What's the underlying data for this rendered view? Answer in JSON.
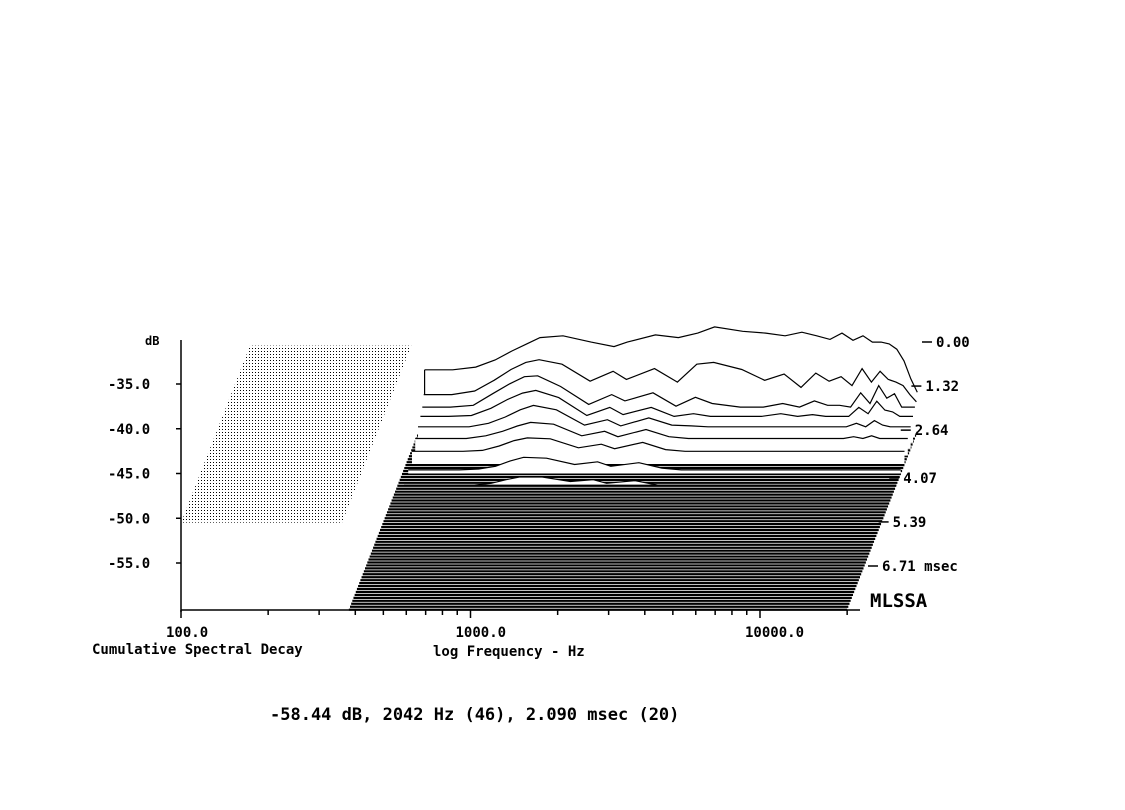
{
  "chart_data": {
    "type": "waterfall",
    "title": "Cumulative Spectral Decay",
    "xlabel": "log Frequency - Hz",
    "ylabel": "dB",
    "x_scale": "log",
    "x_ticks": [
      {
        "value": 100,
        "label": "100.0"
      },
      {
        "value": 1000,
        "label": "1000.0"
      },
      {
        "value": 10000,
        "label": "10000.0"
      }
    ],
    "y_ticks": [
      {
        "value": -35,
        "label": "-35.0"
      },
      {
        "value": -40,
        "label": "-40.0"
      },
      {
        "value": -45,
        "label": "-45.0"
      },
      {
        "value": -50,
        "label": "-50.0"
      },
      {
        "value": -55,
        "label": "-55.0"
      }
    ],
    "y_range": [
      -60,
      -30
    ],
    "x_range": [
      100,
      20000
    ],
    "time_ticks": [
      {
        "value": 0.0,
        "label": "0.00"
      },
      {
        "value": 1.32,
        "label": "1.32"
      },
      {
        "value": 2.64,
        "label": "2.64"
      },
      {
        "value": 4.07,
        "label": "4.07"
      },
      {
        "value": 5.39,
        "label": "5.39"
      },
      {
        "value": 6.71,
        "label": "6.71 msec"
      }
    ],
    "time_range": [
      0,
      7.4
    ],
    "brand": "MLSSA",
    "readout": "-58.44 dB, 2042 Hz (46), 2.090 msec (20)",
    "slices": [
      {
        "t": 0.0,
        "points": [
          [
            400,
            -33.5
          ],
          [
            500,
            -33.5
          ],
          [
            600,
            -33.2
          ],
          [
            700,
            -32.4
          ],
          [
            800,
            -31.4
          ],
          [
            900,
            -30.6
          ],
          [
            1000,
            -29.9
          ],
          [
            1200,
            -29.7
          ],
          [
            1500,
            -30.4
          ],
          [
            1800,
            -30.9
          ],
          [
            2000,
            -30.4
          ],
          [
            2500,
            -29.6
          ],
          [
            3000,
            -29.9
          ],
          [
            3500,
            -29.4
          ],
          [
            4000,
            -28.7
          ],
          [
            5000,
            -29.2
          ],
          [
            6000,
            -29.4
          ],
          [
            7000,
            -29.7
          ],
          [
            8000,
            -29.3
          ],
          [
            9000,
            -29.7
          ],
          [
            10000,
            -30.1
          ],
          [
            11000,
            -29.4
          ],
          [
            12000,
            -30.2
          ],
          [
            13000,
            -29.7
          ],
          [
            14000,
            -30.4
          ],
          [
            15000,
            -30.4
          ],
          [
            16000,
            -30.6
          ],
          [
            17000,
            -31.2
          ],
          [
            18000,
            -32.5
          ],
          [
            19000,
            -34.5
          ],
          [
            20000,
            -36.0
          ]
        ]
      },
      {
        "t": 0.1,
        "points": [
          [
            400,
            -36.0
          ],
          [
            500,
            -36.0
          ],
          [
            600,
            -35.6
          ],
          [
            700,
            -34.4
          ],
          [
            800,
            -33.2
          ],
          [
            900,
            -32.4
          ],
          [
            1000,
            -32.1
          ],
          [
            1200,
            -32.6
          ],
          [
            1500,
            -34.5
          ],
          [
            1800,
            -33.4
          ],
          [
            2000,
            -34.3
          ],
          [
            2500,
            -33.1
          ],
          [
            3000,
            -34.6
          ],
          [
            3500,
            -32.6
          ],
          [
            4000,
            -32.4
          ],
          [
            5000,
            -33.2
          ],
          [
            6000,
            -34.4
          ],
          [
            7000,
            -33.7
          ],
          [
            8000,
            -35.2
          ],
          [
            9000,
            -33.6
          ],
          [
            10000,
            -34.5
          ],
          [
            11000,
            -34.0
          ],
          [
            12000,
            -35.0
          ],
          [
            13000,
            -33.1
          ],
          [
            14000,
            -34.6
          ],
          [
            15000,
            -33.4
          ],
          [
            16000,
            -34.3
          ],
          [
            17000,
            -34.6
          ],
          [
            18000,
            -35.0
          ],
          [
            19000,
            -36.0
          ],
          [
            20000,
            -36.8
          ]
        ]
      },
      {
        "t": 0.25,
        "points": [
          [
            400,
            -37.0
          ],
          [
            500,
            -37.0
          ],
          [
            600,
            -36.8
          ],
          [
            700,
            -35.5
          ],
          [
            800,
            -34.4
          ],
          [
            900,
            -33.6
          ],
          [
            1000,
            -33.5
          ],
          [
            1200,
            -34.7
          ],
          [
            1500,
            -36.7
          ],
          [
            1800,
            -35.6
          ],
          [
            2000,
            -36.3
          ],
          [
            2500,
            -35.4
          ],
          [
            3000,
            -36.9
          ],
          [
            3500,
            -35.9
          ],
          [
            4000,
            -36.6
          ],
          [
            5000,
            -37.0
          ],
          [
            6000,
            -37.0
          ],
          [
            7000,
            -36.6
          ],
          [
            8000,
            -37.0
          ],
          [
            9000,
            -36.3
          ],
          [
            10000,
            -36.8
          ],
          [
            11000,
            -36.8
          ],
          [
            12000,
            -37.0
          ],
          [
            13000,
            -35.4
          ],
          [
            14000,
            -36.6
          ],
          [
            15000,
            -34.6
          ],
          [
            16000,
            -36.0
          ],
          [
            17000,
            -35.5
          ],
          [
            18000,
            -37.0
          ],
          [
            19000,
            -37.0
          ],
          [
            20000,
            -37.0
          ]
        ]
      },
      {
        "t": 0.45,
        "points": [
          [
            400,
            -37.5
          ],
          [
            500,
            -37.5
          ],
          [
            600,
            -37.4
          ],
          [
            700,
            -36.6
          ],
          [
            800,
            -35.6
          ],
          [
            900,
            -34.9
          ],
          [
            1000,
            -34.6
          ],
          [
            1200,
            -35.4
          ],
          [
            1500,
            -37.4
          ],
          [
            1800,
            -36.5
          ],
          [
            2000,
            -37.3
          ],
          [
            2500,
            -36.5
          ],
          [
            3000,
            -37.5
          ],
          [
            3500,
            -37.2
          ],
          [
            4000,
            -37.5
          ],
          [
            5000,
            -37.5
          ],
          [
            6000,
            -37.5
          ],
          [
            7000,
            -37.2
          ],
          [
            8000,
            -37.5
          ],
          [
            9000,
            -37.3
          ],
          [
            10000,
            -37.5
          ],
          [
            11000,
            -37.5
          ],
          [
            12000,
            -37.5
          ],
          [
            13000,
            -36.5
          ],
          [
            14000,
            -37.2
          ],
          [
            15000,
            -35.8
          ],
          [
            16000,
            -36.8
          ],
          [
            17000,
            -37.0
          ],
          [
            18000,
            -37.5
          ],
          [
            19000,
            -37.5
          ],
          [
            20000,
            -37.5
          ]
        ]
      },
      {
        "t": 0.7,
        "points": [
          [
            400,
            -38.0
          ],
          [
            500,
            -38.0
          ],
          [
            600,
            -38.0
          ],
          [
            700,
            -37.6
          ],
          [
            800,
            -36.9
          ],
          [
            900,
            -36.1
          ],
          [
            1000,
            -35.6
          ],
          [
            1200,
            -36.1
          ],
          [
            1500,
            -37.8
          ],
          [
            1800,
            -37.2
          ],
          [
            2000,
            -37.9
          ],
          [
            2500,
            -37.0
          ],
          [
            3000,
            -37.8
          ],
          [
            3500,
            -37.9
          ],
          [
            4000,
            -38.0
          ],
          [
            5000,
            -38.0
          ],
          [
            6000,
            -38.0
          ],
          [
            7000,
            -38.0
          ],
          [
            8000,
            -38.0
          ],
          [
            9000,
            -38.0
          ],
          [
            10000,
            -38.0
          ],
          [
            11000,
            -38.0
          ],
          [
            12000,
            -38.0
          ],
          [
            13000,
            -37.6
          ],
          [
            14000,
            -38.0
          ],
          [
            15000,
            -37.3
          ],
          [
            16000,
            -37.8
          ],
          [
            17000,
            -38.0
          ],
          [
            18000,
            -38.0
          ],
          [
            19000,
            -38.0
          ],
          [
            20000,
            -38.0
          ]
        ]
      },
      {
        "t": 1.0,
        "points": [
          [
            400,
            -38.5
          ],
          [
            500,
            -38.5
          ],
          [
            600,
            -38.5
          ],
          [
            700,
            -38.2
          ],
          [
            800,
            -37.7
          ],
          [
            900,
            -37.1
          ],
          [
            1000,
            -36.7
          ],
          [
            1200,
            -36.9
          ],
          [
            1500,
            -38.2
          ],
          [
            1800,
            -37.7
          ],
          [
            2000,
            -38.3
          ],
          [
            2500,
            -37.5
          ],
          [
            3000,
            -38.3
          ],
          [
            3500,
            -38.5
          ],
          [
            4000,
            -38.5
          ],
          [
            5000,
            -38.5
          ],
          [
            6000,
            -38.5
          ],
          [
            7000,
            -38.5
          ],
          [
            8000,
            -38.5
          ],
          [
            9000,
            -38.5
          ],
          [
            10000,
            -38.5
          ],
          [
            11000,
            -38.5
          ],
          [
            12000,
            -38.5
          ],
          [
            13000,
            -38.3
          ],
          [
            14000,
            -38.5
          ],
          [
            15000,
            -38.2
          ],
          [
            16000,
            -38.5
          ],
          [
            17000,
            -38.5
          ],
          [
            18000,
            -38.5
          ],
          [
            19000,
            -38.5
          ],
          [
            20000,
            -38.5
          ]
        ]
      },
      {
        "t": 1.35,
        "points": [
          [
            400,
            -39.0
          ],
          [
            500,
            -39.0
          ],
          [
            600,
            -39.0
          ],
          [
            700,
            -38.9
          ],
          [
            800,
            -38.4
          ],
          [
            900,
            -37.8
          ],
          [
            1000,
            -37.5
          ],
          [
            1200,
            -37.6
          ],
          [
            1500,
            -38.6
          ],
          [
            1800,
            -38.2
          ],
          [
            2000,
            -38.7
          ],
          [
            2500,
            -38.0
          ],
          [
            3000,
            -38.8
          ],
          [
            3500,
            -39.0
          ],
          [
            4000,
            -39.0
          ],
          [
            5000,
            -39.0
          ],
          [
            6000,
            -39.0
          ],
          [
            7000,
            -39.0
          ],
          [
            8000,
            -39.0
          ],
          [
            9000,
            -39.0
          ],
          [
            10000,
            -39.0
          ],
          [
            11000,
            -39.0
          ],
          [
            12000,
            -39.0
          ],
          [
            13000,
            -39.0
          ],
          [
            14000,
            -39.0
          ],
          [
            15000,
            -39.0
          ],
          [
            16000,
            -39.0
          ],
          [
            17000,
            -39.0
          ],
          [
            18000,
            -39.0
          ],
          [
            19000,
            -39.0
          ],
          [
            20000,
            -39.0
          ]
        ]
      },
      {
        "t": 1.75,
        "points": [
          [
            400,
            -40.0
          ],
          [
            500,
            -40.0
          ],
          [
            600,
            -40.0
          ],
          [
            700,
            -39.9
          ],
          [
            800,
            -39.6
          ],
          [
            900,
            -39.0
          ],
          [
            1000,
            -38.6
          ],
          [
            1200,
            -38.7
          ],
          [
            1500,
            -39.4
          ],
          [
            1800,
            -39.1
          ],
          [
            2000,
            -39.6
          ],
          [
            2500,
            -39.2
          ],
          [
            3000,
            -39.8
          ],
          [
            3500,
            -40.0
          ],
          [
            4000,
            -40.0
          ],
          [
            5000,
            -40.0
          ],
          [
            6000,
            -40.0
          ],
          [
            7000,
            -40.0
          ],
          [
            8000,
            -40.0
          ],
          [
            9000,
            -40.0
          ],
          [
            10000,
            -40.0
          ],
          [
            11000,
            -40.0
          ],
          [
            12000,
            -40.0
          ],
          [
            13000,
            -40.0
          ],
          [
            14000,
            -40.0
          ],
          [
            15000,
            -40.0
          ],
          [
            16000,
            -40.0
          ],
          [
            17000,
            -40.0
          ],
          [
            18000,
            -40.0
          ],
          [
            19000,
            -40.0
          ],
          [
            20000,
            -40.0
          ]
        ]
      },
      {
        "t": 2.2,
        "points": [
          [
            400,
            -40.5
          ],
          [
            500,
            -40.5
          ],
          [
            600,
            -40.5
          ],
          [
            700,
            -40.5
          ],
          [
            800,
            -40.3
          ],
          [
            900,
            -39.9
          ],
          [
            1000,
            -39.6
          ],
          [
            1200,
            -39.6
          ],
          [
            1500,
            -40.1
          ],
          [
            1800,
            -39.9
          ],
          [
            2000,
            -40.3
          ],
          [
            2500,
            -40.0
          ],
          [
            3000,
            -40.5
          ],
          [
            3500,
            -40.5
          ],
          [
            4000,
            -40.5
          ],
          [
            5000,
            -40.5
          ],
          [
            6000,
            -40.5
          ],
          [
            7000,
            -40.5
          ],
          [
            8000,
            -40.5
          ],
          [
            9000,
            -40.5
          ],
          [
            10000,
            -40.5
          ],
          [
            11000,
            -40.5
          ],
          [
            12000,
            -40.5
          ],
          [
            13000,
            -40.5
          ],
          [
            14000,
            -40.5
          ],
          [
            15000,
            -40.5
          ],
          [
            16000,
            -40.5
          ],
          [
            17000,
            -40.5
          ],
          [
            18000,
            -40.5
          ],
          [
            19000,
            -40.5
          ],
          [
            20000,
            -40.5
          ]
        ]
      }
    ]
  }
}
